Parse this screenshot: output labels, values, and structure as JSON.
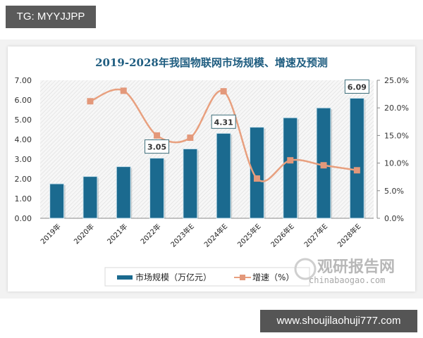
{
  "header": {
    "tg_label": "TG: MYYJJPP"
  },
  "footer": {
    "url_label": "www.shoujilaohuji777.com"
  },
  "watermark": {
    "cn": "观研报告网",
    "en": "chinabaogao.com"
  },
  "colors": {
    "bar": "#1b6a8f",
    "line": "#e8a07f",
    "marker": "#e3987a",
    "title": "#1f5d80"
  },
  "chart_data": {
    "type": "bar",
    "title": "2019-2028年我国物联网市场规模、增速及预测",
    "categories": [
      "2019年",
      "2020年",
      "2021年",
      "2022年",
      "2023年E",
      "2024年E",
      "2025年E",
      "2026年E",
      "2027年E",
      "2028年E"
    ],
    "series": [
      {
        "name": "市场规模（万亿元）",
        "type": "bar",
        "axis": "left",
        "values": [
          1.75,
          2.12,
          2.62,
          3.05,
          3.52,
          4.31,
          4.62,
          5.1,
          5.6,
          6.09
        ]
      },
      {
        "name": "增速（%）",
        "type": "line",
        "axis": "right",
        "values": [
          null,
          21.2,
          23.1,
          15.0,
          14.6,
          23.0,
          7.2,
          10.5,
          9.6,
          8.7
        ]
      }
    ],
    "data_labels": [
      {
        "index": 3,
        "text": "3.05"
      },
      {
        "index": 5,
        "text": "4.31"
      },
      {
        "index": 9,
        "text": "6.09"
      }
    ],
    "y_left": {
      "ticks": [
        "0.00",
        "1.00",
        "2.00",
        "3.00",
        "4.00",
        "5.00",
        "6.00",
        "7.00"
      ],
      "ylim": [
        0,
        7
      ]
    },
    "y_right": {
      "ticks": [
        "0.0%",
        "5.0%",
        "10.0%",
        "15.0%",
        "20.0%",
        "25.0%"
      ],
      "ylim": [
        0,
        25
      ]
    },
    "legend": [
      "市场规模（万亿元）",
      "增速（%）"
    ],
    "legend_position": "bottom",
    "xlabel": "",
    "ylabel": ""
  }
}
